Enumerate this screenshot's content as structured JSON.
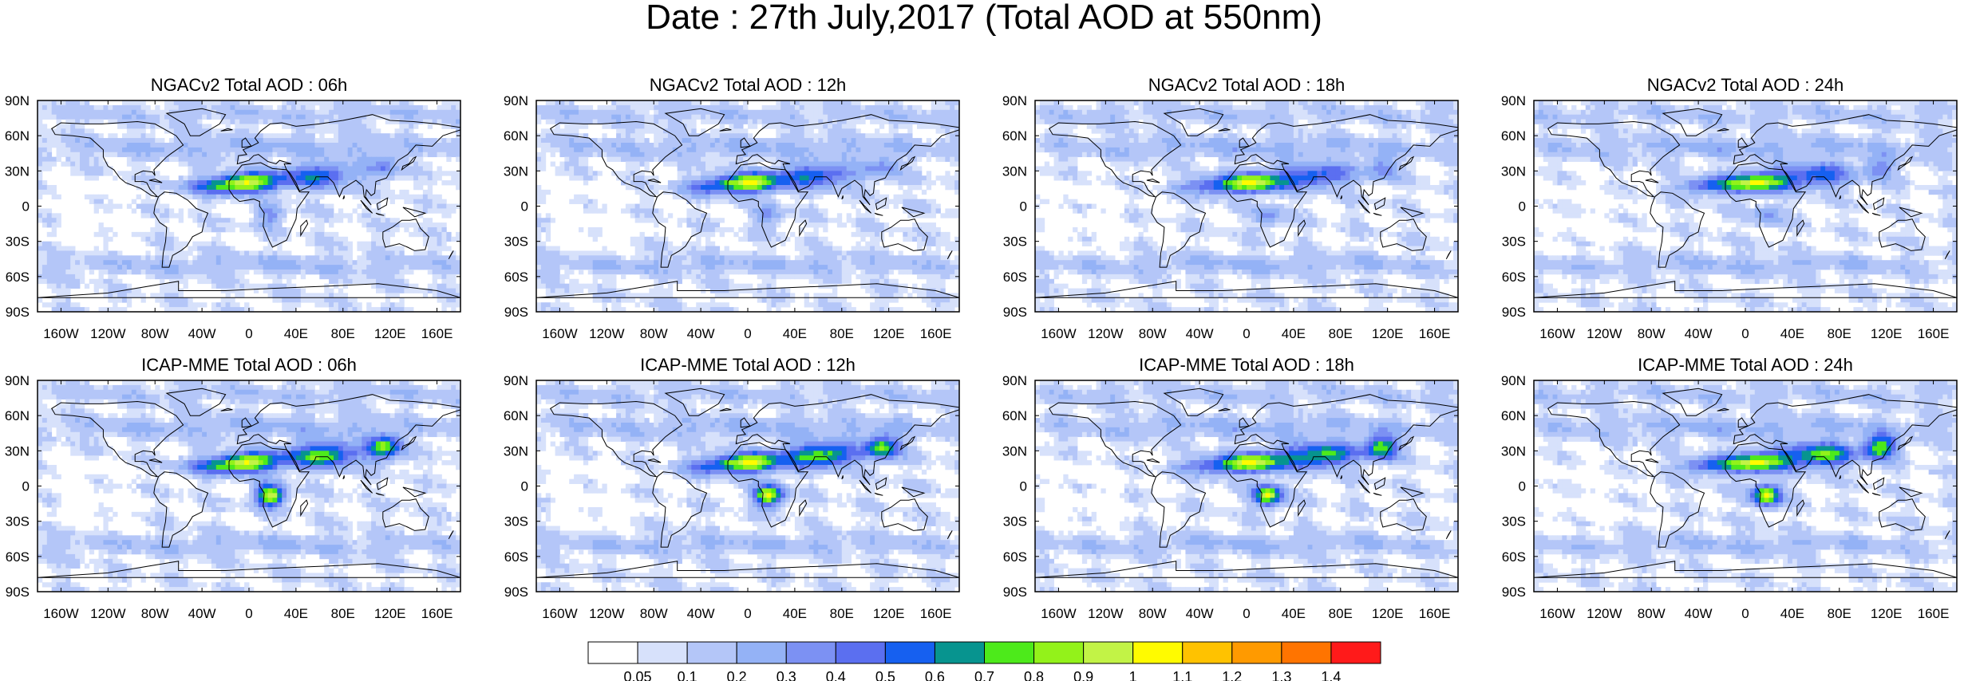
{
  "title": "Date : 27th July,2017 (Total AOD at 550nm)",
  "panels": [
    {
      "title": "NGACv2 Total AOD : 06h"
    },
    {
      "title": "NGACv2 Total AOD : 12h"
    },
    {
      "title": "NGACv2 Total AOD : 18h"
    },
    {
      "title": "NGACv2 Total AOD : 24h"
    },
    {
      "title": "ICAP-MME Total AOD : 06h"
    },
    {
      "title": "ICAP-MME Total AOD : 12h"
    },
    {
      "title": "ICAP-MME Total AOD : 18h"
    },
    {
      "title": "ICAP-MME Total AOD : 24h"
    }
  ],
  "lat_labels": [
    "90N",
    "60N",
    "30N",
    "0",
    "30S",
    "60S",
    "90S"
  ],
  "lon_labels": [
    "160W",
    "120W",
    "80W",
    "40W",
    "0",
    "40E",
    "80E",
    "120E",
    "160E"
  ],
  "lat_values": [
    90,
    60,
    30,
    0,
    -30,
    -60,
    -90
  ],
  "lon_values": [
    -160,
    -120,
    -80,
    -40,
    0,
    40,
    80,
    120,
    160
  ],
  "colorbar": {
    "colors": [
      "#ffffff",
      "#d7e1fb",
      "#b4c6f8",
      "#94b2f6",
      "#7c91f3",
      "#5b6ff0",
      "#1660f0",
      "#07948f",
      "#4dea1b",
      "#93f21a",
      "#c2f346",
      "#fffb00",
      "#ffc200",
      "#ff9a00",
      "#ff7400",
      "#ff1a1a"
    ],
    "labels": [
      "0.05",
      "0.1",
      "0.2",
      "0.3",
      "0.4",
      "0.5",
      "0.6",
      "0.7",
      "0.8",
      "0.9",
      "1",
      "1.1",
      "1.2",
      "1.3",
      "1.4"
    ]
  }
}
